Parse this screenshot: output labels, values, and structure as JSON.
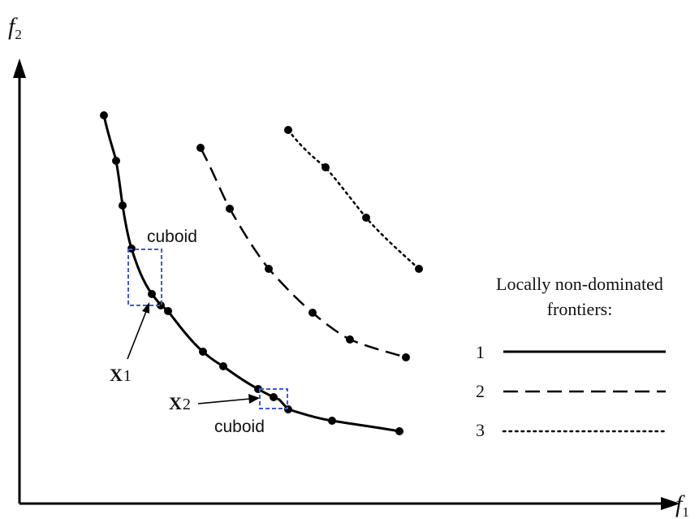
{
  "axes": {
    "y_label": "f",
    "y_sub": "2",
    "x_label": "f",
    "x_sub": "1"
  },
  "frontiers": [
    {
      "id": 1,
      "style": "solid"
    },
    {
      "id": 2,
      "style": "dashed"
    },
    {
      "id": 3,
      "style": "dotted"
    }
  ],
  "annotations": {
    "cuboid_upper": "cuboid",
    "cuboid_lower": "cuboid",
    "x1_label": "X",
    "x1_sub": "1",
    "x2_label": "X",
    "x2_sub": "2"
  },
  "legend": {
    "title_line1": "Locally non-dominated",
    "title_line2": "frontiers:",
    "items": [
      {
        "label": "1",
        "style": "solid"
      },
      {
        "label": "2",
        "style": "dashed"
      },
      {
        "label": "3",
        "style": "dotted"
      }
    ]
  },
  "colors": {
    "line": "#000000",
    "cuboid_box": "#3b5bdb"
  }
}
